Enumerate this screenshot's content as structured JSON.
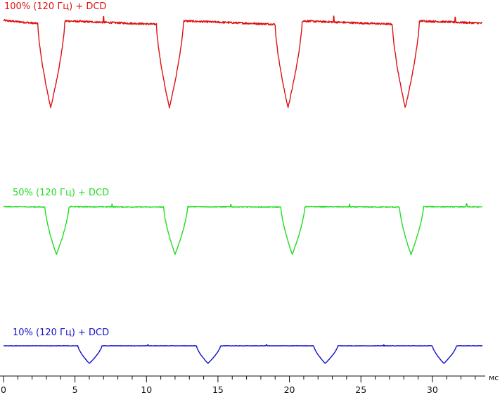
{
  "chart_data": {
    "type": "line",
    "x_unit": "мс",
    "xlim": [
      0,
      33.5
    ],
    "x_ticks": [
      0,
      5,
      10,
      15,
      20,
      25,
      30
    ],
    "x_tick_labels": [
      "0",
      "5",
      "10",
      "15",
      "20",
      "25",
      "30"
    ],
    "grid": false,
    "series": [
      {
        "name": "100% (120 Гц) + DCD",
        "color": "#dd1111",
        "baseline_start": 100,
        "baseline_end": 95,
        "dip_min": 0,
        "dip_times": [
          3.3,
          11.6,
          19.9,
          28.1
        ],
        "blips": [
          7.0,
          23.1,
          31.6
        ]
      },
      {
        "name": "50% (120 Гц) + DCD",
        "color": "#22dd22",
        "baseline_start": 100,
        "baseline_end": 99,
        "dip_min": 0,
        "dip_times": [
          3.7,
          12.0,
          20.2,
          28.5
        ],
        "blips": [
          7.6,
          15.9,
          24.2,
          32.4
        ]
      },
      {
        "name": "10% (120 Гц) + DCD",
        "color": "#1111cc",
        "baseline_start": 100,
        "baseline_end": 100,
        "dip_min": 0,
        "dip_times": [
          6.0,
          14.3,
          22.5,
          30.8
        ],
        "blips": [
          10.1,
          18.4,
          26.6
        ]
      }
    ]
  }
}
